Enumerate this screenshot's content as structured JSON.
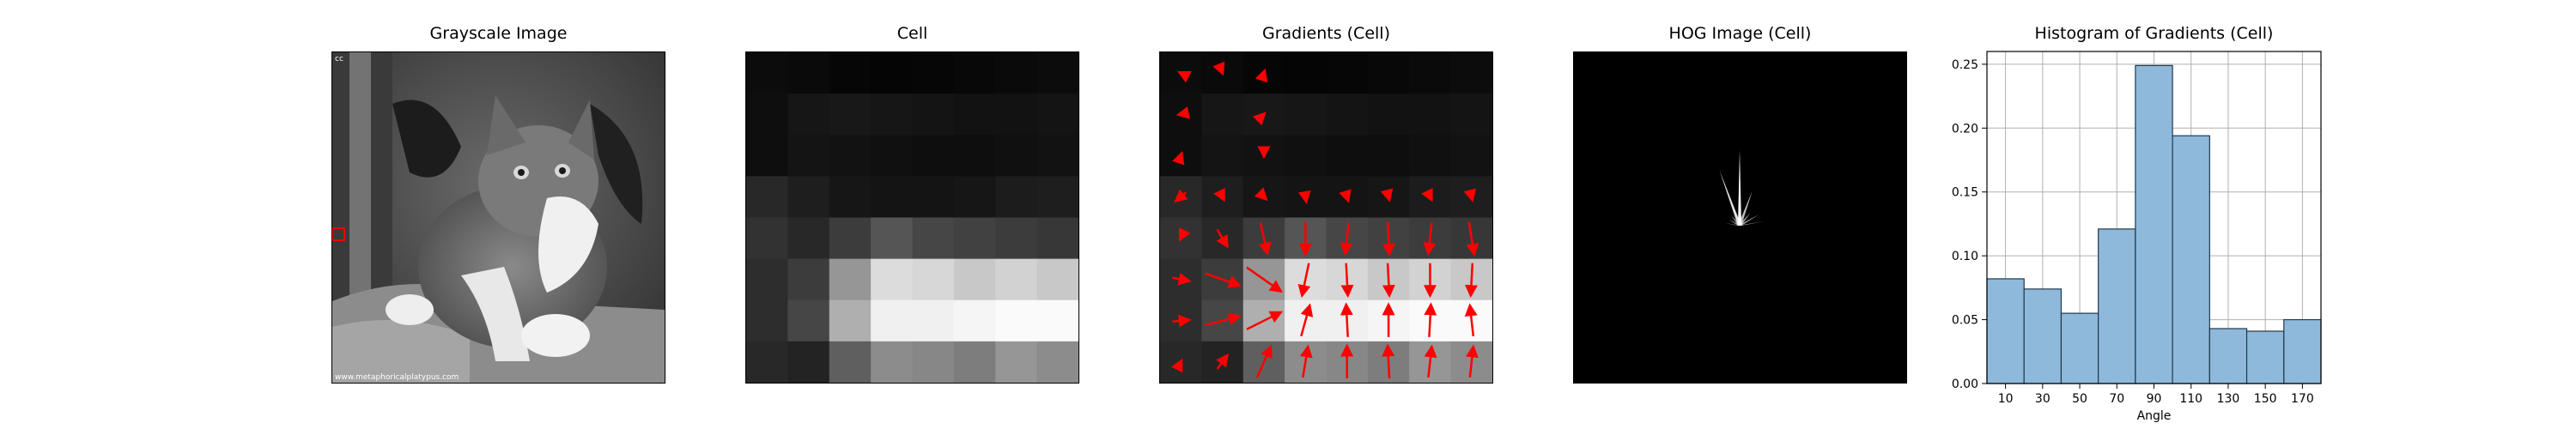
{
  "figure": {
    "panels": [
      {
        "title": "Grayscale Image",
        "corner_text": "cc",
        "watermark": "www.metaphoricalplatypus.com"
      },
      {
        "title": "Cell"
      },
      {
        "title": "Gradients (Cell)"
      },
      {
        "title": "HOG Image (Cell)"
      },
      {
        "title": "Histogram of Gradients (Cell)"
      }
    ]
  },
  "cell_grid": {
    "rows": 8,
    "cols": 8,
    "intensity": [
      [
        12,
        10,
        6,
        5,
        6,
        8,
        10,
        12
      ],
      [
        14,
        22,
        24,
        22,
        20,
        18,
        18,
        20
      ],
      [
        14,
        20,
        18,
        16,
        14,
        14,
        16,
        18
      ],
      [
        40,
        30,
        22,
        20,
        20,
        22,
        28,
        30
      ],
      [
        50,
        40,
        60,
        85,
        70,
        65,
        60,
        55
      ],
      [
        45,
        60,
        150,
        220,
        215,
        200,
        210,
        200
      ],
      [
        45,
        70,
        175,
        240,
        240,
        245,
        250,
        250
      ],
      [
        40,
        35,
        95,
        140,
        135,
        125,
        150,
        140
      ]
    ]
  },
  "gradients": {
    "arrows": [
      {
        "r": 0,
        "c": 0,
        "dx": -0.1,
        "dy": -0.05
      },
      {
        "r": 0,
        "c": 1,
        "dx": 0.02,
        "dy": 0.05
      },
      {
        "r": 0,
        "c": 2,
        "dx": 0.05,
        "dy": -0.15
      },
      {
        "r": 1,
        "c": 0,
        "dx": -0.15,
        "dy": 0.03
      },
      {
        "r": 1,
        "c": 2,
        "dx": 0.05,
        "dy": -0.05
      },
      {
        "r": 2,
        "c": 0,
        "dx": 0.05,
        "dy": -0.15
      },
      {
        "r": 2,
        "c": 2,
        "dx": 0.0,
        "dy": 0.08
      },
      {
        "r": 3,
        "c": 0,
        "dx": -0.3,
        "dy": 0.25
      },
      {
        "r": 3,
        "c": 1,
        "dx": 0.1,
        "dy": 0.2
      },
      {
        "r": 3,
        "c": 2,
        "dx": 0.15,
        "dy": 0.15
      },
      {
        "r": 3,
        "c": 3,
        "dx": 0.05,
        "dy": 0.3
      },
      {
        "r": 3,
        "c": 4,
        "dx": 0.08,
        "dy": 0.25
      },
      {
        "r": 3,
        "c": 5,
        "dx": 0.05,
        "dy": 0.2
      },
      {
        "r": 3,
        "c": 6,
        "dx": 0.1,
        "dy": 0.2
      },
      {
        "r": 3,
        "c": 7,
        "dx": 0.05,
        "dy": 0.2
      },
      {
        "r": 4,
        "c": 0,
        "dx": -0.05,
        "dy": 0.1
      },
      {
        "r": 4,
        "c": 1,
        "dx": 0.3,
        "dy": 0.5
      },
      {
        "r": 4,
        "c": 2,
        "dx": 0.2,
        "dy": 0.9
      },
      {
        "r": 4,
        "c": 3,
        "dx": 0.0,
        "dy": 0.95
      },
      {
        "r": 4,
        "c": 4,
        "dx": -0.1,
        "dy": 0.9
      },
      {
        "r": 4,
        "c": 5,
        "dx": 0.05,
        "dy": 0.95
      },
      {
        "r": 4,
        "c": 6,
        "dx": -0.1,
        "dy": 0.9
      },
      {
        "r": 4,
        "c": 7,
        "dx": 0.15,
        "dy": 0.95
      },
      {
        "r": 5,
        "c": 0,
        "dx": 0.5,
        "dy": 0.1
      },
      {
        "r": 5,
        "c": 1,
        "dx": 1.0,
        "dy": 0.35
      },
      {
        "r": 5,
        "c": 2,
        "dx": 1.0,
        "dy": 0.7
      },
      {
        "r": 5,
        "c": 3,
        "dx": -0.2,
        "dy": 0.95
      },
      {
        "r": 5,
        "c": 4,
        "dx": 0.05,
        "dy": 0.95
      },
      {
        "r": 5,
        "c": 5,
        "dx": 0.05,
        "dy": 0.95
      },
      {
        "r": 5,
        "c": 6,
        "dx": 0.0,
        "dy": 0.95
      },
      {
        "r": 5,
        "c": 7,
        "dx": -0.05,
        "dy": 0.95
      },
      {
        "r": 6,
        "c": 0,
        "dx": 0.5,
        "dy": -0.05
      },
      {
        "r": 6,
        "c": 1,
        "dx": 1.0,
        "dy": -0.25
      },
      {
        "r": 6,
        "c": 2,
        "dx": 1.0,
        "dy": -0.5
      },
      {
        "r": 6,
        "c": 3,
        "dx": 0.25,
        "dy": -0.9
      },
      {
        "r": 6,
        "c": 4,
        "dx": -0.05,
        "dy": -0.95
      },
      {
        "r": 6,
        "c": 5,
        "dx": 0.0,
        "dy": -0.95
      },
      {
        "r": 6,
        "c": 6,
        "dx": 0.05,
        "dy": -0.95
      },
      {
        "r": 6,
        "c": 7,
        "dx": -0.1,
        "dy": -0.9
      },
      {
        "r": 7,
        "c": 0,
        "dx": 0.05,
        "dy": -0.1
      },
      {
        "r": 7,
        "c": 1,
        "dx": 0.3,
        "dy": -0.4
      },
      {
        "r": 7,
        "c": 2,
        "dx": 0.4,
        "dy": -0.9
      },
      {
        "r": 7,
        "c": 3,
        "dx": 0.15,
        "dy": -0.9
      },
      {
        "r": 7,
        "c": 4,
        "dx": 0.0,
        "dy": -0.95
      },
      {
        "r": 7,
        "c": 5,
        "dx": -0.05,
        "dy": -0.95
      },
      {
        "r": 7,
        "c": 6,
        "dx": 0.1,
        "dy": -0.9
      },
      {
        "r": 7,
        "c": 7,
        "dx": 0.1,
        "dy": -0.9
      }
    ]
  },
  "hog_image": {
    "orientations": [
      10,
      30,
      50,
      70,
      90,
      110,
      130,
      150,
      170
    ],
    "magnitudes": [
      0.082,
      0.074,
      0.055,
      0.121,
      0.249,
      0.194,
      0.043,
      0.041,
      0.05
    ]
  },
  "chart_data": {
    "type": "bar",
    "title": "Histogram of Gradients (Cell)",
    "xlabel": "Angle",
    "ylabel": "",
    "categories": [
      10,
      30,
      50,
      70,
      90,
      110,
      130,
      150,
      170
    ],
    "values": [
      0.082,
      0.074,
      0.055,
      0.121,
      0.249,
      0.194,
      0.043,
      0.041,
      0.05
    ],
    "xlim": [
      0,
      180
    ],
    "ylim": [
      0,
      0.26
    ],
    "yticks": [
      0.0,
      0.05,
      0.1,
      0.15,
      0.2,
      0.25
    ],
    "ytick_labels": [
      "0.00",
      "0.05",
      "0.10",
      "0.15",
      "0.20",
      "0.25"
    ],
    "xtick_labels": [
      "10",
      "30",
      "50",
      "70",
      "90",
      "110",
      "130",
      "150",
      "170"
    ],
    "bar_color": "#8fb9db",
    "edge_color": "#1f3a4d",
    "grid": true
  }
}
